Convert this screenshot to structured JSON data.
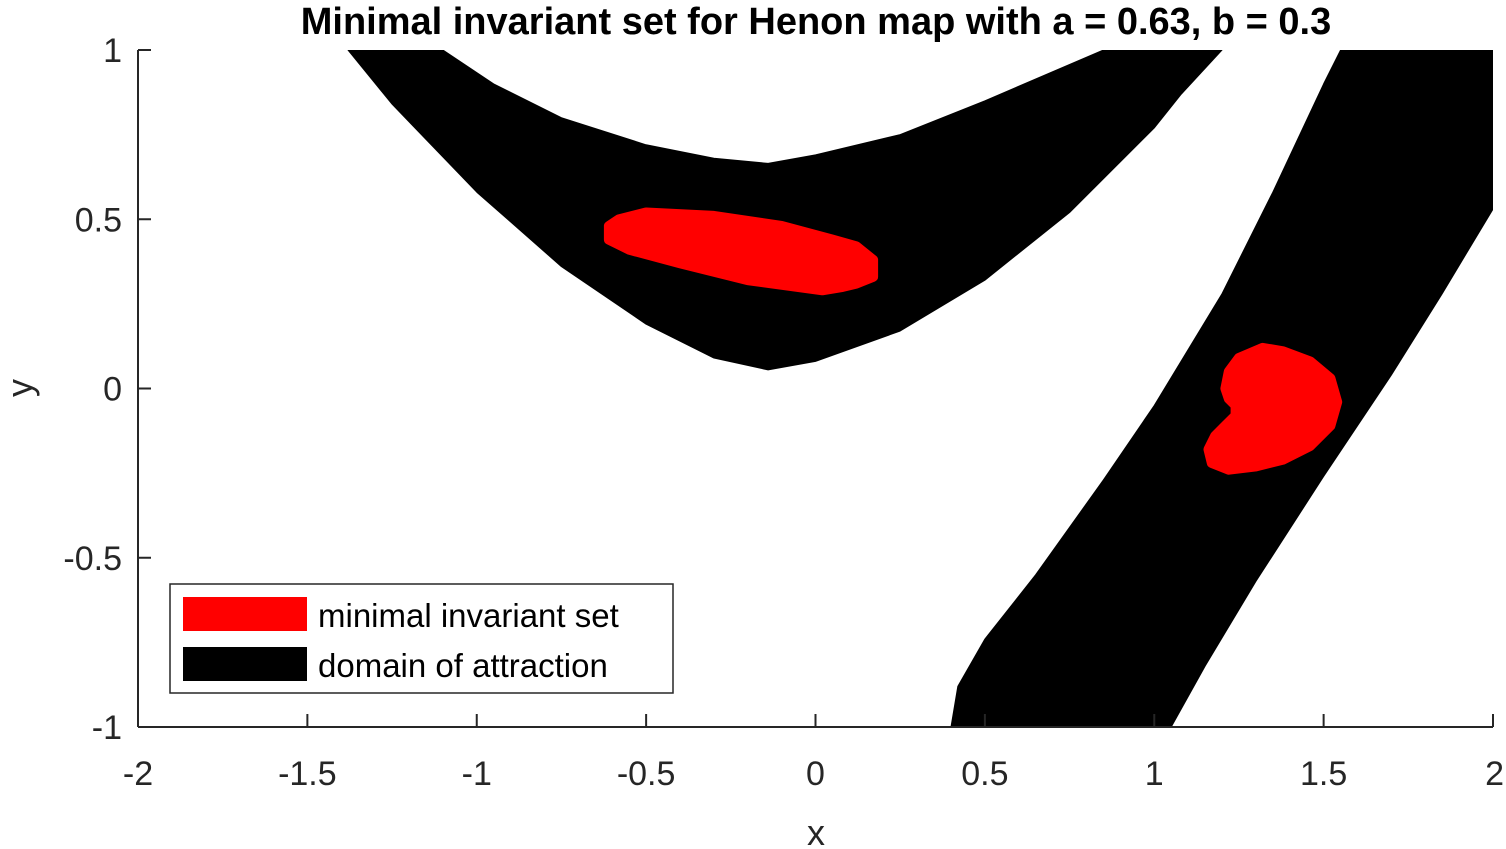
{
  "chart_data": {
    "type": "area",
    "title": "Minimal invariant set for Henon map with a = 0.63, b = 0.3",
    "xlabel": "x",
    "ylabel": "y",
    "xlim": [
      -2,
      2
    ],
    "ylim": [
      -1,
      1
    ],
    "xticks": [
      -2,
      -1.5,
      -1,
      -0.5,
      0,
      0.5,
      1,
      1.5,
      2
    ],
    "xtick_labels": [
      "-2",
      "-1.5",
      "-1",
      "-0.5",
      "0",
      "0.5",
      "1",
      "1.5",
      "2"
    ],
    "yticks": [
      -1,
      -0.5,
      0,
      0.5,
      1
    ],
    "ytick_labels": [
      "-1",
      "-0.5",
      "0",
      "0.5",
      "1"
    ],
    "grid": false,
    "legend_position": "bottom-left",
    "series": [
      {
        "name": "minimal invariant set",
        "color": "#ff0000",
        "regions": [
          [
            [
              -0.58,
              0.5
            ],
            [
              -0.5,
              0.52
            ],
            [
              -0.3,
              0.51
            ],
            [
              -0.1,
              0.48
            ],
            [
              0.05,
              0.44
            ],
            [
              0.12,
              0.42
            ],
            [
              0.17,
              0.38
            ],
            [
              0.17,
              0.33
            ],
            [
              0.12,
              0.31
            ],
            [
              0.08,
              0.3
            ],
            [
              0.02,
              0.29
            ],
            [
              -0.2,
              0.32
            ],
            [
              -0.4,
              0.37
            ],
            [
              -0.55,
              0.41
            ],
            [
              -0.61,
              0.44
            ],
            [
              -0.61,
              0.48
            ]
          ],
          [
            [
              1.25,
              0.09
            ],
            [
              1.32,
              0.12
            ],
            [
              1.38,
              0.11
            ],
            [
              1.46,
              0.08
            ],
            [
              1.52,
              0.03
            ],
            [
              1.54,
              -0.04
            ],
            [
              1.52,
              -0.11
            ],
            [
              1.46,
              -0.17
            ],
            [
              1.38,
              -0.21
            ],
            [
              1.3,
              -0.23
            ],
            [
              1.22,
              -0.24
            ],
            [
              1.17,
              -0.22
            ],
            [
              1.16,
              -0.18
            ],
            [
              1.18,
              -0.14
            ],
            [
              1.21,
              -0.11
            ],
            [
              1.24,
              -0.08
            ],
            [
              1.24,
              -0.05
            ],
            [
              1.22,
              -0.03
            ],
            [
              1.21,
              0.0
            ],
            [
              1.22,
              0.05
            ]
          ]
        ]
      },
      {
        "name": "domain of attraction",
        "color": "#000000",
        "regions": [
          [
            [
              -1.38,
              1.0
            ],
            [
              -1.25,
              0.84
            ],
            [
              -1.0,
              0.58
            ],
            [
              -0.75,
              0.36
            ],
            [
              -0.5,
              0.19
            ],
            [
              -0.3,
              0.09
            ],
            [
              -0.14,
              0.055
            ],
            [
              0.0,
              0.08
            ],
            [
              0.25,
              0.17
            ],
            [
              0.5,
              0.32
            ],
            [
              0.75,
              0.52
            ],
            [
              1.0,
              0.77
            ],
            [
              1.08,
              0.87
            ],
            [
              1.2,
              1.0
            ],
            [
              0.85,
              1.0
            ],
            [
              0.5,
              0.85
            ],
            [
              0.25,
              0.75
            ],
            [
              0.0,
              0.69
            ],
            [
              -0.14,
              0.665
            ],
            [
              -0.3,
              0.68
            ],
            [
              -0.5,
              0.72
            ],
            [
              -0.75,
              0.8
            ],
            [
              -0.95,
              0.9
            ],
            [
              -1.1,
              1.0
            ]
          ],
          [
            [
              0.4,
              -1.0
            ],
            [
              0.42,
              -0.88
            ],
            [
              0.5,
              -0.74
            ],
            [
              0.65,
              -0.55
            ],
            [
              0.85,
              -0.27
            ],
            [
              1.0,
              -0.05
            ],
            [
              1.2,
              0.28
            ],
            [
              1.35,
              0.58
            ],
            [
              1.5,
              0.9
            ],
            [
              1.55,
              1.0
            ],
            [
              2.0,
              1.0
            ],
            [
              2.0,
              0.53
            ],
            [
              1.85,
              0.28
            ],
            [
              1.7,
              0.04
            ],
            [
              1.5,
              -0.26
            ],
            [
              1.3,
              -0.57
            ],
            [
              1.15,
              -0.82
            ],
            [
              1.05,
              -1.0
            ]
          ]
        ]
      }
    ]
  }
}
